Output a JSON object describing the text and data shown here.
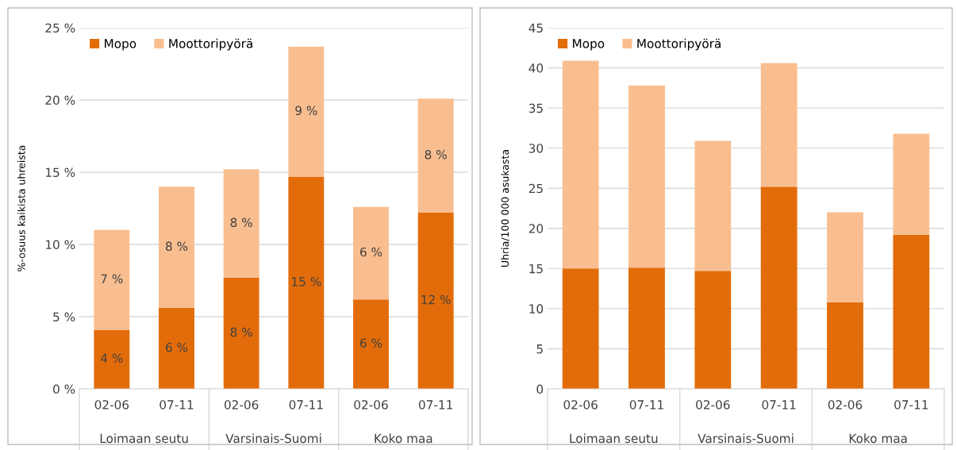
{
  "chart_data": [
    {
      "type": "bar",
      "stacked": true,
      "ylabel": "%-osuus kaikista uhreista",
      "categories": [
        "02-06",
        "07-11",
        "02-06",
        "07-11",
        "02-06",
        "07-11"
      ],
      "annotations": [
        "Loimaan seutu",
        "Varsinais-Suomi",
        "Koko maa"
      ],
      "series": [
        {
          "name": "Mopo",
          "color": "#e36c0a",
          "values": [
            4.1,
            5.6,
            7.7,
            14.7,
            6.2,
            12.2
          ],
          "value_labels": [
            "4 %",
            "6 %",
            "8 %",
            "15 %",
            "6 %",
            "12 %"
          ]
        },
        {
          "name": "Moottoripyörä",
          "color": "#f9be8f",
          "values": [
            6.9,
            8.4,
            7.5,
            9.0,
            6.4,
            7.9
          ],
          "value_labels": [
            "7 %",
            "8 %",
            "8 %",
            "9 %",
            "6 %",
            "8 %"
          ]
        }
      ],
      "ylim": [
        0,
        25
      ],
      "yticks": [
        {
          "value": 0,
          "label": "0 %"
        },
        {
          "value": 5,
          "label": "5 %"
        },
        {
          "value": 10,
          "label": "10 %"
        },
        {
          "value": 15,
          "label": "15 %"
        },
        {
          "value": 20,
          "label": "20 %"
        },
        {
          "value": 25,
          "label": "25 %"
        }
      ],
      "grid": "y",
      "legend": "top left"
    },
    {
      "type": "bar",
      "stacked": true,
      "ylabel": "Uhria/100 000 asukasta",
      "categories": [
        "02-06",
        "07-11",
        "02-06",
        "07-11",
        "02-06",
        "07-11"
      ],
      "annotations": [
        "Loimaan seutu",
        "Varsinais-Suomi",
        "Koko maa"
      ],
      "series": [
        {
          "name": "Mopo",
          "color": "#e36c0a",
          "values": [
            15.0,
            15.1,
            14.7,
            25.2,
            10.8,
            19.2
          ]
        },
        {
          "name": "Moottoripyörä",
          "color": "#f9be8f",
          "values": [
            25.9,
            22.7,
            16.2,
            15.4,
            11.2,
            12.6
          ]
        }
      ],
      "ylim": [
        0,
        45
      ],
      "yticks": [
        0,
        5,
        10,
        15,
        20,
        25,
        30,
        35,
        40,
        45
      ],
      "grid": "y",
      "legend": "top left"
    }
  ]
}
